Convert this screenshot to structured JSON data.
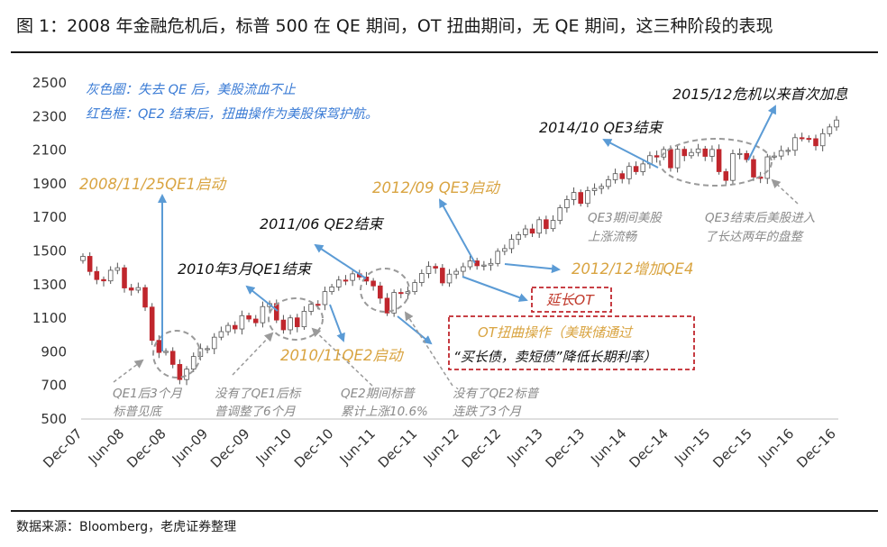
{
  "title": "图 1：2008 年金融危机后，标普 500 在 QE 期间，OT 扭曲期间，无 QE 期间，这三种阶段的表现",
  "source": "数据来源：Bloomberg，老虎证券整理",
  "chart_data": {
    "type": "candlestick",
    "ylim": [
      500,
      2500
    ],
    "yticks": [
      500,
      700,
      900,
      1100,
      1300,
      1500,
      1700,
      1900,
      2100,
      2300,
      2500
    ],
    "xticks": [
      "Dec-07",
      "Jun-08",
      "Dec-08",
      "Jun-09",
      "Dec-09",
      "Jun-10",
      "Dec-10",
      "Jun-11",
      "Dec-11",
      "Jun-12",
      "Dec-12",
      "Jun-13",
      "Dec-13",
      "Jun-14",
      "Dec-14",
      "Jun-15",
      "Dec-15",
      "Jun-16",
      "Dec-16"
    ],
    "closes": [
      1468,
      1378,
      1330,
      1322,
      1385,
      1400,
      1280,
      1267,
      1282,
      1166,
      968,
      896,
      903,
      825,
      735,
      797,
      872,
      919,
      919,
      987,
      1020,
      1057,
      1036,
      1115,
      1095,
      1073,
      1169,
      1187,
      1089,
      1031,
      1102,
      1049,
      1141,
      1183,
      1181,
      1258,
      1286,
      1327,
      1325,
      1364,
      1345,
      1321,
      1292,
      1219,
      1131,
      1253,
      1247,
      1258,
      1312,
      1366,
      1408,
      1398,
      1310,
      1362,
      1379,
      1406,
      1441,
      1412,
      1416,
      1426,
      1498,
      1514,
      1569,
      1597,
      1631,
      1606,
      1686,
      1633,
      1682,
      1757,
      1806,
      1848,
      1783,
      1859,
      1872,
      1884,
      1924,
      1960,
      1930,
      2003,
      1972,
      2018,
      2067,
      2059,
      2104,
      1995,
      2105,
      2067,
      2086,
      2107,
      2063,
      2104,
      1972,
      1920,
      2079,
      2080,
      2044,
      1940,
      1932,
      2060,
      2065,
      2097,
      2099,
      2174,
      2170,
      2168,
      2126,
      2198,
      2238,
      2279
    ],
    "annotations": {
      "note_grey_circle": "灰色圈：失去 QE 后，美股流血不止",
      "note_red_box": "红色框：QE2 结束后，扭曲操作为美股保驾护航。",
      "qe1_start": "2008/11/25QE1启动",
      "qe1_end": "2010年3月QE1结束",
      "qe2_start": "2010/11QE2启动",
      "qe2_end": "2011/06 QE2结束",
      "qe3_start": "2012/09 QE3启动",
      "qe4": "2012/12增加QE4",
      "qe3_end": "2014/10 QE3结束",
      "first_hike": "2015/12危机以来首次加息",
      "extend_ot": "延长OT",
      "ot_line1": "OT扭曲操作（美联储通过",
      "ot_line2": "“买长债，卖短债”降低长期利率）",
      "g_qe1_bottom_1": "QE1后3个月",
      "g_qe1_bottom_2": "标普见底",
      "g_no_qe1_1": "没有了QE1后标",
      "g_no_qe1_2": "普调整了6个月",
      "g_qe2_rise_1": "QE2期间标普",
      "g_qe2_rise_2": "累计上涨10.6%",
      "g_no_qe2_1": "没有了QE2标普",
      "g_no_qe2_2": "连跌了3个月",
      "g_qe3_smooth_1": "QE3期间美股",
      "g_qe3_smooth_2": "上涨流畅",
      "g_qe3_end_1": "QE3结束后美股进入",
      "g_qe3_end_2": "了长达两年的盘整"
    },
    "colors": {
      "up": "#ffffff",
      "down": "#c0262d",
      "arrow": "#5b9bd5",
      "ellipse": "#9a9a9a",
      "box": "#c0262d"
    }
  }
}
